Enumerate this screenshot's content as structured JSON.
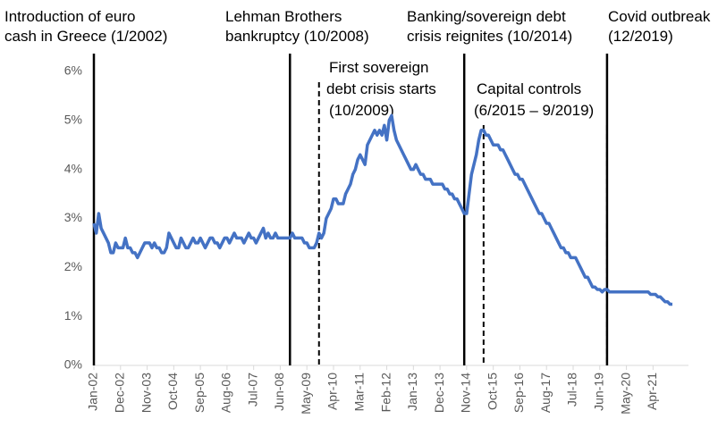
{
  "chart_data": {
    "type": "line",
    "annotations": [
      {
        "lines": [
          "Introduction of euro",
          "cash in Greece (1/2002)"
        ],
        "style": "solid"
      },
      {
        "lines": [
          "Lehman Brothers",
          "bankruptcy (10/2008)"
        ],
        "style": "solid"
      },
      {
        "lines": [
          "First sovereign",
          "debt crisis starts",
          "(10/2009)"
        ],
        "style": "dashed"
      },
      {
        "lines": [
          "Banking/sovereign debt",
          "crisis reignites (10/2014)"
        ],
        "style": "solid"
      },
      {
        "lines": [
          "Capital controls",
          "(6/2015 – 9/2019)"
        ],
        "style": "dashed"
      },
      {
        "lines": [
          "Covid outbreak",
          "(12/2019)"
        ],
        "style": "solid"
      }
    ],
    "categories": [
      "Jan-02",
      null,
      null,
      null,
      null,
      null,
      null,
      null,
      null,
      null,
      null,
      "Dec-02",
      null,
      null,
      null,
      null,
      null,
      null,
      null,
      null,
      null,
      null,
      "Nov-03",
      null,
      null,
      null,
      null,
      null,
      null,
      null,
      null,
      null,
      null,
      "Oct-04",
      null,
      null,
      null,
      null,
      null,
      null,
      null,
      null,
      null,
      null,
      "Sep-05",
      null,
      null,
      null,
      null,
      null,
      null,
      null,
      null,
      null,
      null,
      "Aug-06",
      null,
      null,
      null,
      null,
      null,
      null,
      null,
      null,
      null,
      null,
      "Jul-07",
      null,
      null,
      null,
      null,
      null,
      null,
      null,
      null,
      null,
      null,
      "Jun-08",
      null,
      null,
      null,
      null,
      null,
      null,
      null,
      null,
      null,
      null,
      "May-09",
      null,
      null,
      null,
      null,
      null,
      null,
      null,
      null,
      null,
      null,
      "Apr-10",
      null,
      null,
      null,
      null,
      null,
      null,
      null,
      null,
      null,
      null,
      "Mar-11",
      null,
      null,
      null,
      null,
      null,
      null,
      null,
      null,
      null,
      null,
      "Feb-12",
      null,
      null,
      null,
      null,
      null,
      null,
      null,
      null,
      null,
      null,
      "Jan-13",
      null,
      null,
      null,
      null,
      null,
      null,
      null,
      null,
      null,
      null,
      "Dec-13",
      null,
      null,
      null,
      null,
      null,
      null,
      null,
      null,
      null,
      null,
      "Nov-14",
      null,
      null,
      null,
      null,
      null,
      null,
      null,
      null,
      null,
      null,
      "Oct-15",
      null,
      null,
      null,
      null,
      null,
      null,
      null,
      null,
      null,
      null,
      "Sep-16",
      null,
      null,
      null,
      null,
      null,
      null,
      null,
      null,
      null,
      null,
      "Aug-17",
      null,
      null,
      null,
      null,
      null,
      null,
      null,
      null,
      null,
      null,
      "Jul-18",
      null,
      null,
      null,
      null,
      null,
      null,
      null,
      null,
      null,
      null,
      "Jun-19",
      null,
      null,
      null,
      null,
      null,
      null,
      null,
      null,
      null,
      null,
      "May-20",
      null,
      null,
      null,
      null,
      null,
      null,
      null,
      null,
      null,
      null,
      "Apr-21",
      null,
      null,
      null,
      null,
      null,
      null,
      null,
      null
    ],
    "series": [
      {
        "color": "#4472c4",
        "values": [
          2.9,
          2.7,
          3.1,
          2.8,
          2.7,
          2.6,
          2.5,
          2.3,
          2.3,
          2.5,
          2.4,
          2.4,
          2.4,
          2.6,
          2.4,
          2.4,
          2.3,
          2.3,
          2.2,
          2.3,
          2.4,
          2.5,
          2.5,
          2.5,
          2.4,
          2.5,
          2.4,
          2.4,
          2.3,
          2.3,
          2.4,
          2.7,
          2.6,
          2.5,
          2.4,
          2.4,
          2.6,
          2.5,
          2.4,
          2.4,
          2.5,
          2.6,
          2.5,
          2.5,
          2.6,
          2.5,
          2.4,
          2.5,
          2.6,
          2.6,
          2.5,
          2.5,
          2.4,
          2.5,
          2.6,
          2.6,
          2.5,
          2.6,
          2.7,
          2.6,
          2.6,
          2.6,
          2.5,
          2.6,
          2.7,
          2.6,
          2.6,
          2.5,
          2.6,
          2.7,
          2.8,
          2.6,
          2.7,
          2.6,
          2.6,
          2.7,
          2.6,
          2.6,
          2.6,
          2.6,
          2.6,
          2.6,
          2.7,
          2.6,
          2.6,
          2.6,
          2.6,
          2.5,
          2.5,
          2.4,
          2.4,
          2.4,
          2.5,
          2.7,
          2.6,
          2.7,
          3.0,
          3.1,
          3.2,
          3.4,
          3.4,
          3.3,
          3.3,
          3.3,
          3.5,
          3.6,
          3.7,
          3.9,
          4.0,
          4.2,
          4.3,
          4.2,
          4.1,
          4.5,
          4.6,
          4.7,
          4.8,
          4.7,
          4.8,
          4.7,
          4.9,
          4.6,
          5.0,
          5.1,
          4.8,
          4.6,
          4.5,
          4.4,
          4.3,
          4.2,
          4.1,
          4.0,
          4.0,
          4.1,
          4.0,
          3.9,
          3.9,
          3.8,
          3.8,
          3.8,
          3.7,
          3.7,
          3.7,
          3.7,
          3.7,
          3.6,
          3.6,
          3.5,
          3.5,
          3.4,
          3.4,
          3.3,
          3.2,
          3.1,
          3.1,
          3.5,
          3.9,
          4.1,
          4.3,
          4.6,
          4.8,
          4.8,
          4.7,
          4.7,
          4.6,
          4.5,
          4.5,
          4.5,
          4.4,
          4.4,
          4.3,
          4.2,
          4.1,
          4.0,
          3.9,
          3.9,
          3.8,
          3.8,
          3.7,
          3.6,
          3.5,
          3.4,
          3.3,
          3.2,
          3.1,
          3.1,
          3.0,
          2.9,
          2.9,
          2.8,
          2.7,
          2.6,
          2.5,
          2.4,
          2.4,
          2.3,
          2.3,
          2.2,
          2.2,
          2.2,
          2.1,
          2.0,
          1.9,
          1.8,
          1.8,
          1.7,
          1.6,
          1.6,
          1.55,
          1.55,
          1.5,
          1.55,
          1.55,
          1.5,
          1.5,
          1.5,
          1.5,
          1.5,
          1.5,
          1.5,
          1.5,
          1.5,
          1.5,
          1.5,
          1.5,
          1.5,
          1.5,
          1.5,
          1.5,
          1.5,
          1.45,
          1.45,
          1.45,
          1.4,
          1.4,
          1.35,
          1.3,
          1.3,
          1.25,
          1.25
        ]
      }
    ],
    "ylim": [
      0,
      6
    ],
    "yticks": [
      {
        "value": 0,
        "label": "0%"
      },
      {
        "value": 1,
        "label": "1%"
      },
      {
        "value": 2,
        "label": "2%"
      },
      {
        "value": 3,
        "label": "3%"
      },
      {
        "value": 4,
        "label": "4%"
      },
      {
        "value": 5,
        "label": "5%"
      },
      {
        "value": 6,
        "label": "6%"
      }
    ]
  }
}
